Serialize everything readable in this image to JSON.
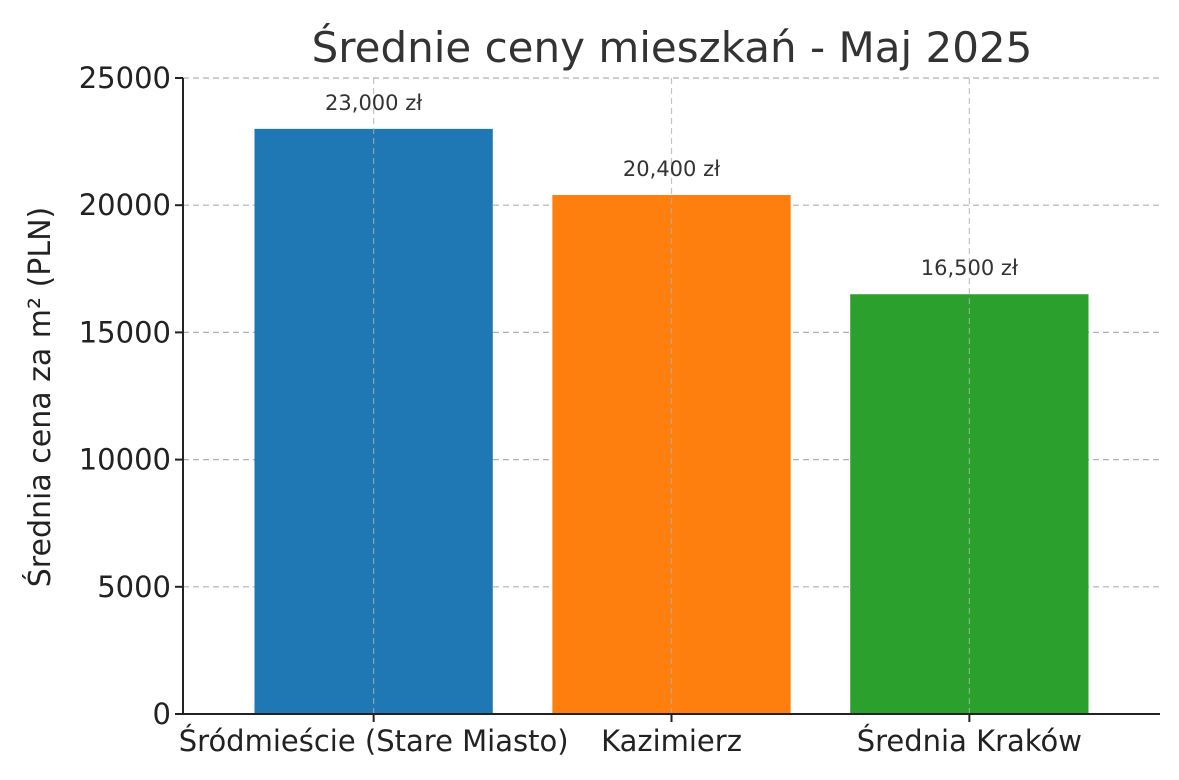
{
  "chart_data": {
    "type": "bar",
    "title": "Średnie ceny mieszkań - Maj 2025",
    "xlabel": "",
    "ylabel": "Średnia cena za m² (PLN)",
    "categories": [
      "Śródmieście (Stare Miasto)",
      "Kazimierz",
      "Średnia Kraków"
    ],
    "values": [
      23000,
      20400,
      16500
    ],
    "value_labels": [
      "23,000 zł",
      "20,400 zł",
      "16,500 zł"
    ],
    "colors": [
      "#1f77b4",
      "#ff7f0e",
      "#2ca02c"
    ],
    "ylim": [
      0,
      25000
    ],
    "yticks": [
      0,
      5000,
      10000,
      15000,
      20000,
      25000
    ],
    "ytick_labels": [
      "0",
      "5000",
      "10000",
      "15000",
      "20000",
      "25000"
    ],
    "grid": true,
    "legend": "none"
  }
}
